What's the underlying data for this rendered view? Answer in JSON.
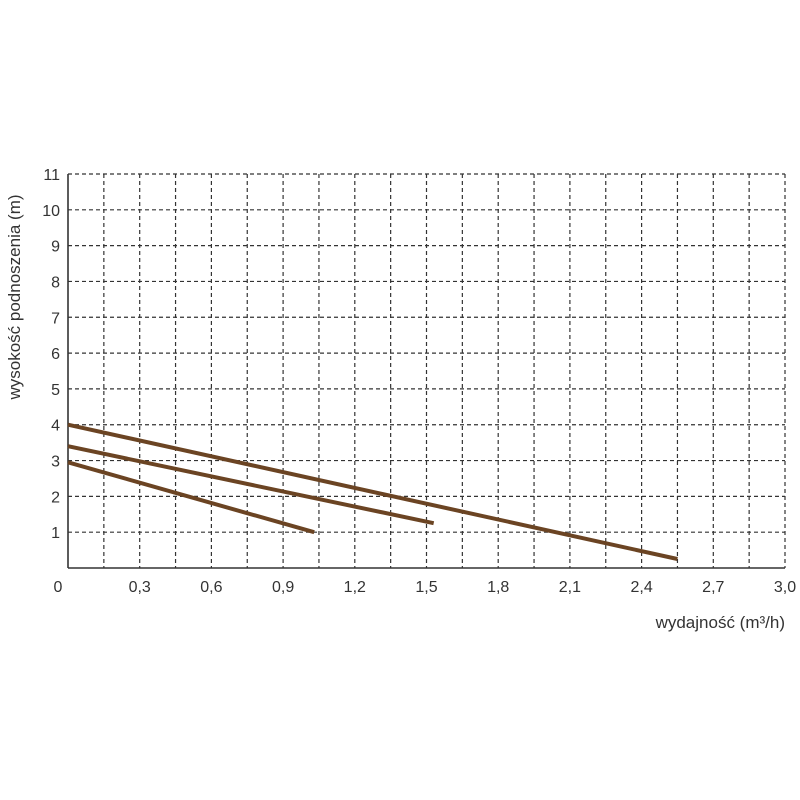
{
  "chart_data": {
    "type": "line",
    "title": "",
    "xlabel": "wydajność (m³/h)",
    "ylabel": "wysokość podnoszenia (m)",
    "xlim": [
      0,
      3.0
    ],
    "ylim": [
      0,
      11
    ],
    "x_ticks": [
      "0",
      "0,3",
      "0,6",
      "0,9",
      "1,2",
      "1,5",
      "1,8",
      "2,1",
      "2,4",
      "2,7",
      "3,0"
    ],
    "y_ticks": [
      "1",
      "2",
      "3",
      "4",
      "5",
      "6",
      "7",
      "8",
      "9",
      "10",
      "11"
    ],
    "grid": true,
    "line_color": "#6b4423",
    "series": [
      {
        "points": [
          [
            0,
            4.0
          ],
          [
            2.55,
            0.25
          ]
        ]
      },
      {
        "points": [
          [
            0,
            3.4
          ],
          [
            1.53,
            1.25
          ]
        ]
      },
      {
        "points": [
          [
            0,
            2.95
          ],
          [
            1.03,
            1.0
          ]
        ]
      }
    ]
  }
}
